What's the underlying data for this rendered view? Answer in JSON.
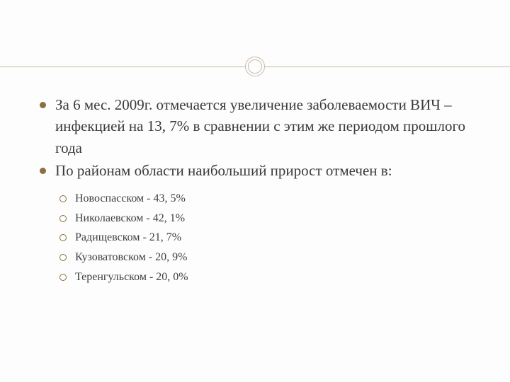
{
  "styling": {
    "background_color": "#fdfdfd",
    "text_color": "#3a3a3a",
    "accent_color": "#8b6f3e",
    "divider_color": "#c9b9a8",
    "main_fontsize": 21,
    "sub_fontsize": 16,
    "font_family": "Georgia"
  },
  "main_items": [
    {
      "text": "За 6 мес. 2009г. отмечается увеличение заболеваемости ВИЧ – инфекцией на 13, 7% в сравнении с этим же периодом прошлого года"
    },
    {
      "text": "По районам области наибольший прирост отмечен в:",
      "sub_items": [
        "Новоспасском - 43, 5%",
        "Николаевском - 42, 1%",
        "Радищевском - 21, 7%",
        "Кузоватовском - 20, 9%",
        "Теренгульском - 20, 0%"
      ]
    }
  ]
}
